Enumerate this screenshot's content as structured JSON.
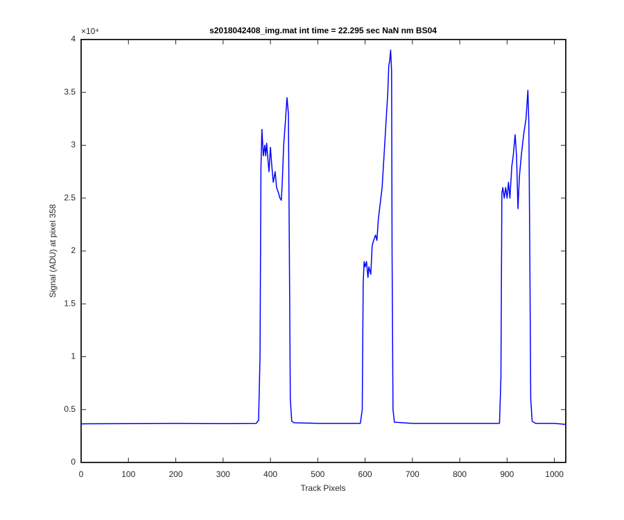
{
  "chart_data": {
    "type": "line",
    "title": "s2018042408_img.mat int time = 22.295 sec  NaN nm BS04",
    "x_label": "Track Pixels",
    "y_label": "Signal (ADU) at pixel 358",
    "y_multiplier": "×10⁴",
    "xlim": [
      0,
      1024
    ],
    "xticks": [
      0,
      100,
      200,
      300,
      400,
      500,
      600,
      700,
      800,
      900,
      1000
    ],
    "ylim": [
      0,
      40000
    ],
    "yticks": [
      {
        "value": 0,
        "label": "0"
      },
      {
        "value": 5000,
        "label": "0.5"
      },
      {
        "value": 10000,
        "label": "1"
      },
      {
        "value": 15000,
        "label": "1.5"
      },
      {
        "value": 20000,
        "label": "2"
      },
      {
        "value": 25000,
        "label": "2.5"
      },
      {
        "value": 30000,
        "label": "3"
      },
      {
        "value": 35000,
        "label": "3.5"
      },
      {
        "value": 40000,
        "label": "4"
      }
    ],
    "grid": false,
    "series": [
      {
        "color": "#0000ff",
        "x": [
          0,
          100,
          200,
          300,
          370,
          375,
          378,
          380,
          382,
          385,
          388,
          390,
          392,
          395,
          397,
          400,
          403,
          406,
          410,
          413,
          417,
          420,
          423,
          425,
          428,
          432,
          435,
          438,
          440,
          442,
          445,
          450,
          500,
          590,
          594,
          596,
          598,
          600,
          603,
          606,
          608,
          612,
          615,
          618,
          622,
          625,
          628,
          632,
          636,
          640,
          644,
          648,
          650,
          652,
          654,
          656,
          657,
          659,
          662,
          700,
          800,
          884,
          887,
          889,
          891,
          894,
          897,
          900,
          903,
          906,
          910,
          913,
          917,
          920,
          923,
          926,
          930,
          935,
          940,
          944,
          946,
          948,
          950,
          953,
          960,
          1000,
          1024
        ],
        "values": [
          3650,
          3680,
          3700,
          3680,
          3700,
          4000,
          10000,
          28000,
          31500,
          29000,
          30000,
          29000,
          30200,
          28500,
          27500,
          29800,
          28000,
          26500,
          27500,
          26000,
          25500,
          25000,
          24800,
          26500,
          30000,
          32500,
          34500,
          33000,
          20000,
          6000,
          3900,
          3750,
          3700,
          3700,
          5000,
          17000,
          19000,
          18500,
          19000,
          17500,
          18500,
          17800,
          20500,
          21000,
          21500,
          21000,
          23000,
          24500,
          26000,
          29000,
          32000,
          35000,
          37500,
          38000,
          39000,
          37000,
          20000,
          5000,
          3800,
          3700,
          3700,
          3700,
          8000,
          25500,
          26000,
          25000,
          26000,
          25000,
          26500,
          25000,
          28000,
          29000,
          31000,
          29000,
          24000,
          27000,
          29000,
          31000,
          32500,
          35200,
          32000,
          20000,
          6000,
          3900,
          3700,
          3700,
          3600
        ]
      }
    ]
  }
}
